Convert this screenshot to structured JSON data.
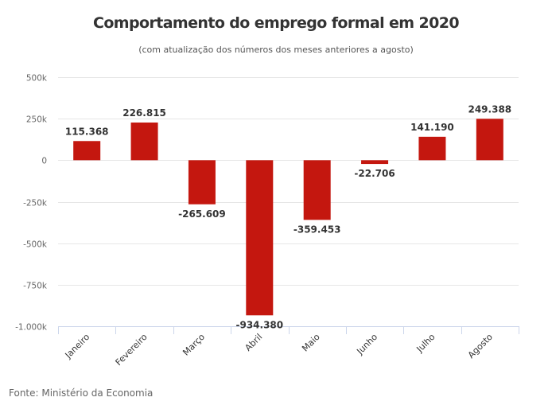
{
  "chart_data": {
    "type": "bar",
    "title": "Comportamento do emprego formal em 2020",
    "subtitle": "(com atualização dos números dos meses anteriores a agosto)",
    "xlabel": "",
    "ylabel": "",
    "categories": [
      "Janeiro",
      "Fevereiro",
      "Março",
      "Abril",
      "Maio",
      "Junho",
      "Julho",
      "Agosto"
    ],
    "values": [
      115368,
      226815,
      -265609,
      -934380,
      -359453,
      -22706,
      141190,
      249388
    ],
    "data_labels": [
      "115.368",
      "226.815",
      "-265.609",
      "-934.380",
      "-359.453",
      "-22.706",
      "141.190",
      "249.388"
    ],
    "ylim": [
      -1000000,
      500000
    ],
    "yticks": [
      500000,
      250000,
      0,
      -250000,
      -500000,
      -750000,
      -1000000
    ],
    "ytick_labels": [
      "500k",
      "250k",
      "0",
      "-250k",
      "-500k",
      "-750k",
      "-1.000k"
    ],
    "grid": true,
    "legend": "none",
    "bar_color": "#c4170f",
    "source": "Fonte: Ministério da Economia"
  }
}
